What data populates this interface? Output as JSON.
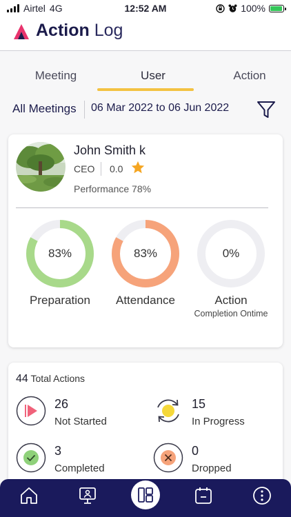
{
  "status_bar": {
    "carrier": "Airtel",
    "network": "4G",
    "time": "12:52 AM",
    "battery": "100%"
  },
  "header": {
    "brand_bold": "Action",
    "brand_light": "Log"
  },
  "tabs": [
    {
      "label": "Meeting",
      "active": false
    },
    {
      "label": "User",
      "active": true
    },
    {
      "label": "Action",
      "active": false
    }
  ],
  "filter": {
    "meetings_label": "All Meetings",
    "date_range": "06 Mar 2022 to 06 Jun 2022"
  },
  "user": {
    "name": "John Smith k",
    "role": "CEO",
    "rating": "0.0",
    "performance": "Performance 78%"
  },
  "rings": [
    {
      "value": "83%",
      "fraction": 0.83,
      "label": "Preparation",
      "sub": "",
      "color": "#a8d98a"
    },
    {
      "value": "83%",
      "fraction": 0.83,
      "label": "Attendance",
      "sub": "",
      "color": "#f6a37a"
    },
    {
      "value": "0%",
      "fraction": 0,
      "label": "Action",
      "sub": "Completion Ontime",
      "color": "#f6a37a"
    }
  ],
  "summary": {
    "total_count": "44",
    "total_label": "Total Actions",
    "stats": [
      {
        "count": "26",
        "label": "Not Started",
        "icon": "play-icon",
        "color": "#f0627a"
      },
      {
        "count": "15",
        "label": "In Progress",
        "icon": "refresh-icon",
        "color": "#f5d83a"
      },
      {
        "count": "3",
        "label": "Completed",
        "icon": "check-icon",
        "color": "#8fd17a"
      },
      {
        "count": "0",
        "label": "Dropped",
        "icon": "cross-icon",
        "color": "#f6a37a"
      }
    ]
  },
  "colors": {
    "tab_accent": "#f3c242",
    "navbar": "#1a1a5c",
    "brand": "#1b1b4b"
  }
}
